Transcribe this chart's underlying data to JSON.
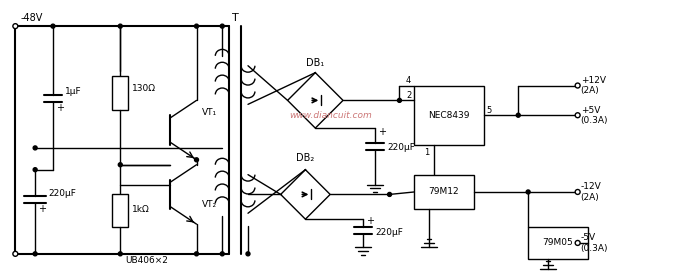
{
  "background_color": "#ffffff",
  "line_color": "#000000",
  "fig_width": 6.91,
  "fig_height": 2.77,
  "dpi": 100,
  "watermark": "www.diancuit.com",
  "watermark_color": "#cc7777",
  "labels": {
    "input_voltage": "-48V",
    "cap1": "1μF",
    "cap2": "220μF",
    "res1": "130Ω",
    "res2": "1kΩ",
    "transistors": "UB406×2",
    "vt1": "VT₁",
    "vt2": "VT₂",
    "transformer": "T",
    "db1": "DB₁",
    "db2": "DB₂",
    "cap3": "220μF",
    "cap4": "220μF",
    "reg1": "NEC8439",
    "reg2": "79M12",
    "reg3": "79M05",
    "out1": "+12V\n(2A)",
    "out2": "+5V\n(0.3A)",
    "out3": "-12V\n(2A)",
    "out4": "-5V\n(0.3A)",
    "pin4": "4",
    "pin2": "2",
    "pin5": "5",
    "pin1": "1"
  }
}
